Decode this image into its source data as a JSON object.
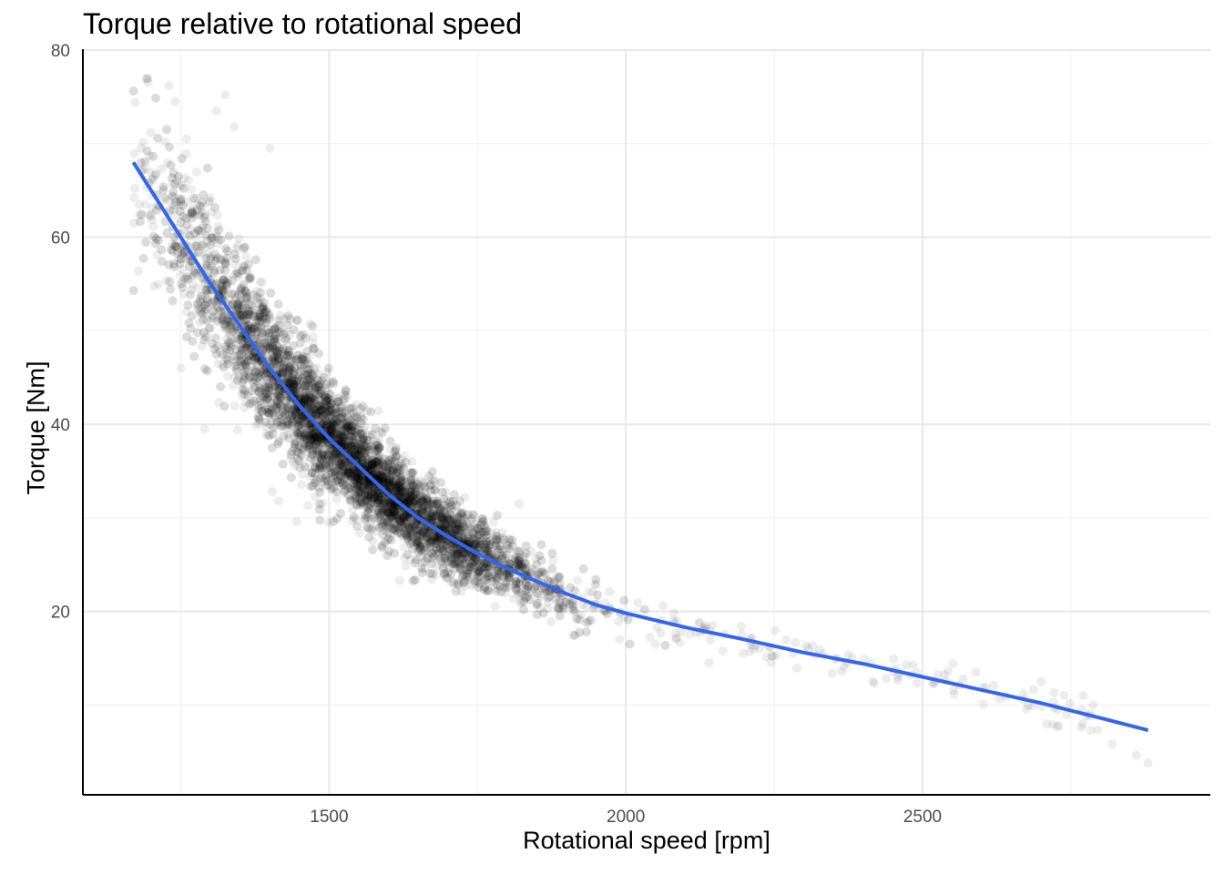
{
  "chart_data": {
    "type": "scatter",
    "title": "Torque relative to rotational speed",
    "xlabel": "Rotational speed [rpm]",
    "ylabel": "Torque [Nm]",
    "xlim": [
      1085,
      2985
    ],
    "ylim": [
      0.4,
      80
    ],
    "x_ticks": [
      1500,
      2000,
      2500
    ],
    "y_ticks": [
      20,
      40,
      60,
      80
    ],
    "grid": true,
    "point_color": "#000000",
    "point_alpha": 0.07,
    "line_color": "#3366ee",
    "series": [
      {
        "type": "scatter",
        "description_points": "approx. 10000 observations following torque ≈ 68 at 1170 rpm decreasing to ≈ 7 at 2880 rpm",
        "sample_points": [
          {
            "x": 1180,
            "y": 63.5
          },
          {
            "x": 1195,
            "y": 76.5
          },
          {
            "x": 1205,
            "y": 66.5
          },
          {
            "x": 1230,
            "y": 76.2
          },
          {
            "x": 1240,
            "y": 74.5
          },
          {
            "x": 1250,
            "y": 46.0
          },
          {
            "x": 1260,
            "y": 70.5
          },
          {
            "x": 1290,
            "y": 39.5
          },
          {
            "x": 1310,
            "y": 73.5
          },
          {
            "x": 1325,
            "y": 75.2
          },
          {
            "x": 1340,
            "y": 71.8
          },
          {
            "x": 1400,
            "y": 69.5
          },
          {
            "x": 1415,
            "y": 31.8
          },
          {
            "x": 1500,
            "y": 29.5
          },
          {
            "x": 1600,
            "y": 26.5
          },
          {
            "x": 1780,
            "y": 22.5
          },
          {
            "x": 1820,
            "y": 31.5
          },
          {
            "x": 2050,
            "y": 16.5
          },
          {
            "x": 2140,
            "y": 14.5
          },
          {
            "x": 2590,
            "y": 13.5
          },
          {
            "x": 2700,
            "y": 12.5
          },
          {
            "x": 2770,
            "y": 8.0
          },
          {
            "x": 2820,
            "y": 5.8
          },
          {
            "x": 2860,
            "y": 4.6
          },
          {
            "x": 2880,
            "y": 3.8
          }
        ]
      },
      {
        "type": "line",
        "points": [
          {
            "x": 1170,
            "y": 68.0
          },
          {
            "x": 1250,
            "y": 60.0
          },
          {
            "x": 1300,
            "y": 55.0
          },
          {
            "x": 1350,
            "y": 50.5
          },
          {
            "x": 1400,
            "y": 46.0
          },
          {
            "x": 1450,
            "y": 42.0
          },
          {
            "x": 1500,
            "y": 38.5
          },
          {
            "x": 1550,
            "y": 35.5
          },
          {
            "x": 1600,
            "y": 32.5
          },
          {
            "x": 1650,
            "y": 30.0
          },
          {
            "x": 1700,
            "y": 28.0
          },
          {
            "x": 1750,
            "y": 26.2
          },
          {
            "x": 1800,
            "y": 24.6
          },
          {
            "x": 1850,
            "y": 23.2
          },
          {
            "x": 1900,
            "y": 21.9
          },
          {
            "x": 1950,
            "y": 20.7
          },
          {
            "x": 2000,
            "y": 19.8
          },
          {
            "x": 2100,
            "y": 18.3
          },
          {
            "x": 2200,
            "y": 17.0
          },
          {
            "x": 2300,
            "y": 15.6
          },
          {
            "x": 2400,
            "y": 14.4
          },
          {
            "x": 2500,
            "y": 13.0
          },
          {
            "x": 2600,
            "y": 11.6
          },
          {
            "x": 2700,
            "y": 10.2
          },
          {
            "x": 2800,
            "y": 8.6
          },
          {
            "x": 2880,
            "y": 7.3
          }
        ]
      }
    ]
  }
}
